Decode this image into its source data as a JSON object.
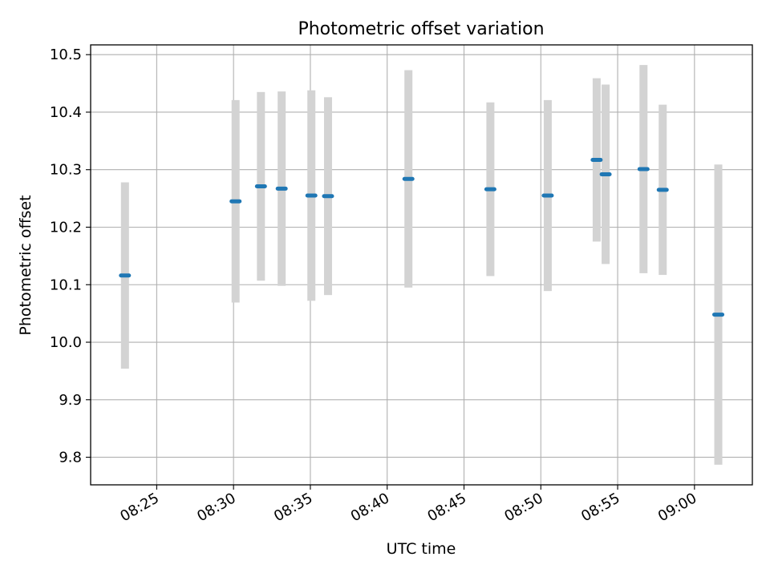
{
  "chart_data": {
    "type": "scatter",
    "title": "Photometric offset variation",
    "xlabel": "UTC time",
    "ylabel": "Photometric offset",
    "xlim": [
      "08:20:42",
      "09:03:46"
    ],
    "ylim": [
      9.752,
      10.517
    ],
    "grid": true,
    "x_ticks": [
      "08:25",
      "08:30",
      "08:35",
      "08:40",
      "08:45",
      "08:50",
      "08:55",
      "09:00"
    ],
    "y_ticks": [
      9.8,
      9.9,
      10.0,
      10.1,
      10.2,
      10.3,
      10.4,
      10.5
    ],
    "points": [
      {
        "time": "08:22:56",
        "y": 10.116,
        "err": 0.162
      },
      {
        "time": "08:30:08",
        "y": 10.245,
        "err": 0.176
      },
      {
        "time": "08:31:47",
        "y": 10.271,
        "err": 0.164
      },
      {
        "time": "08:33:08",
        "y": 10.267,
        "err": 0.169
      },
      {
        "time": "08:35:04",
        "y": 10.255,
        "err": 0.183
      },
      {
        "time": "08:36:09",
        "y": 10.254,
        "err": 0.172
      },
      {
        "time": "08:41:23",
        "y": 10.284,
        "err": 0.189
      },
      {
        "time": "08:46:43",
        "y": 10.266,
        "err": 0.151
      },
      {
        "time": "08:50:27",
        "y": 10.255,
        "err": 0.166
      },
      {
        "time": "08:53:38",
        "y": 10.317,
        "err": 0.142
      },
      {
        "time": "08:54:13",
        "y": 10.292,
        "err": 0.156
      },
      {
        "time": "08:56:41",
        "y": 10.301,
        "err": 0.181
      },
      {
        "time": "08:57:56",
        "y": 10.265,
        "err": 0.148
      },
      {
        "time": "09:01:33",
        "y": 10.048,
        "err": 0.261
      }
    ],
    "marker_color": "#1f77b4",
    "errorbar_color": "#d3d3d3"
  }
}
